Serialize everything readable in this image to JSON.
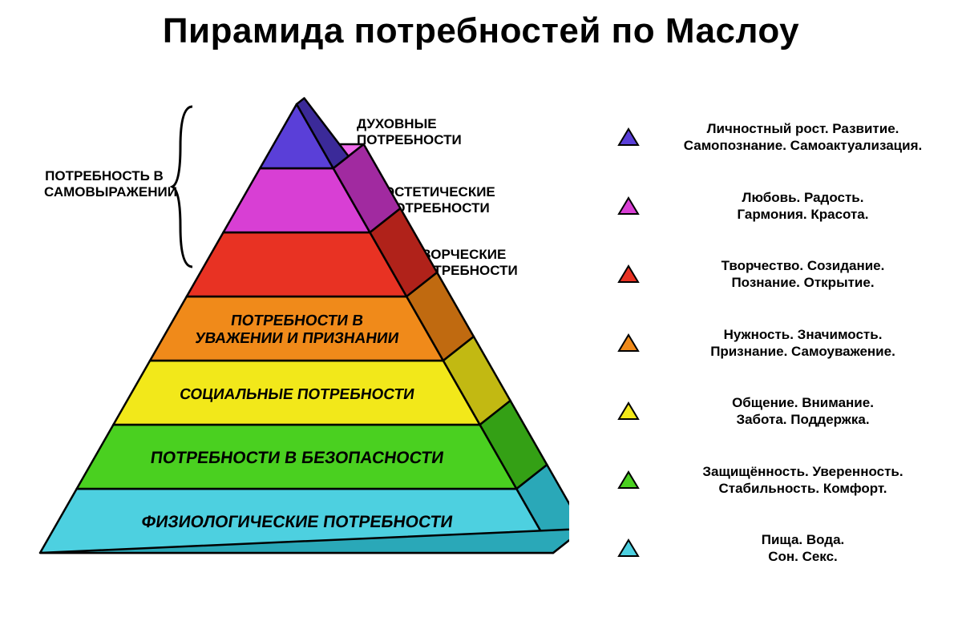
{
  "title": "Пирамида потребностей по Маслоу",
  "brace_label": "ПОТРЕБНОСТЬ В САМОВЫРАЖЕНИИ",
  "pyramid": {
    "type": "pyramid",
    "layers": [
      {
        "name": "level-7-spiritual",
        "label_l1": "ДУХОВНЫЕ",
        "label_l2": "ПОТРЕБНОСТИ",
        "fill": "#5a3fd8",
        "top": "#7a5df2",
        "side": "#3b2a99"
      },
      {
        "name": "level-6-aesthetic",
        "label_l1": "ЭСТЕТИЧЕСКИЕ",
        "label_l2": "ПОТРЕБНОСТИ",
        "fill": "#d83fd4",
        "top": "#ef6bea",
        "side": "#a12aa0"
      },
      {
        "name": "level-5-creative",
        "label_l1": "ТВОРЧЕСКИЕ",
        "label_l2": "ПОТРЕБНОСТИ",
        "fill": "#e83223",
        "top": "#f85b4d",
        "side": "#b0221a"
      },
      {
        "name": "level-4-respect",
        "label_l1": "ПОТРЕБНОСТИ В",
        "label_l2": "УВАЖЕНИИ И ПРИЗНАНИИ",
        "fill": "#f08a1a",
        "top": "#f7a94a",
        "side": "#c06a10"
      },
      {
        "name": "level-3-social",
        "label_l1": "СОЦИАЛЬНЫЕ ПОТРЕБНОСТИ",
        "label_l2": "",
        "fill": "#f2e81a",
        "top": "#f8f270",
        "side": "#c2b912"
      },
      {
        "name": "level-2-safety",
        "label_l1": "ПОТРЕБНОСТИ В БЕЗОПАСНОСТИ",
        "label_l2": "",
        "fill": "#4ad020",
        "top": "#7ee858",
        "side": "#34a015"
      },
      {
        "name": "level-1-physiological",
        "label_l1": "ФИЗИОЛОГИЧЕСКИЕ ПОТРЕБНОСТИ",
        "label_l2": "",
        "fill": "#4dd0e0",
        "top": "#8be4ee",
        "side": "#2aa8b8"
      }
    ],
    "outline": "#000",
    "outline_width": 2.5
  },
  "legend": [
    {
      "fill": "#5a3fd8",
      "line1": "Личностный рост. Развитие.",
      "line2": "Самопознание. Самоактуализация."
    },
    {
      "fill": "#d83fd4",
      "line1": "Любовь. Радость.",
      "line2": "Гармония. Красота."
    },
    {
      "fill": "#e83223",
      "line1": "Творчество. Созидание.",
      "line2": "Познание. Открытие."
    },
    {
      "fill": "#f08a1a",
      "line1": "Нужность. Значимость.",
      "line2": "Признание. Самоуважение."
    },
    {
      "fill": "#f2e81a",
      "line1": "Общение. Внимание.",
      "line2": "Забота. Поддержка."
    },
    {
      "fill": "#4ad020",
      "line1": "Защищённость. Уверенность.",
      "line2": "Стабильность. Комфорт."
    },
    {
      "fill": "#4dd0e0",
      "line1": "Пища. Вода.",
      "line2": "Сон. Секс."
    }
  ],
  "side_labels": [
    {
      "l1": "ДУХОВНЫЕ",
      "l2": "ПОТРЕБНОСТИ"
    },
    {
      "l1": "ЭСТЕТИЧЕСКИЕ",
      "l2": "ПОТРЕБНОСТИ"
    },
    {
      "l1": "ТВОРЧЕСКИЕ",
      "l2": "ПОТРЕБНОСТИ"
    }
  ]
}
